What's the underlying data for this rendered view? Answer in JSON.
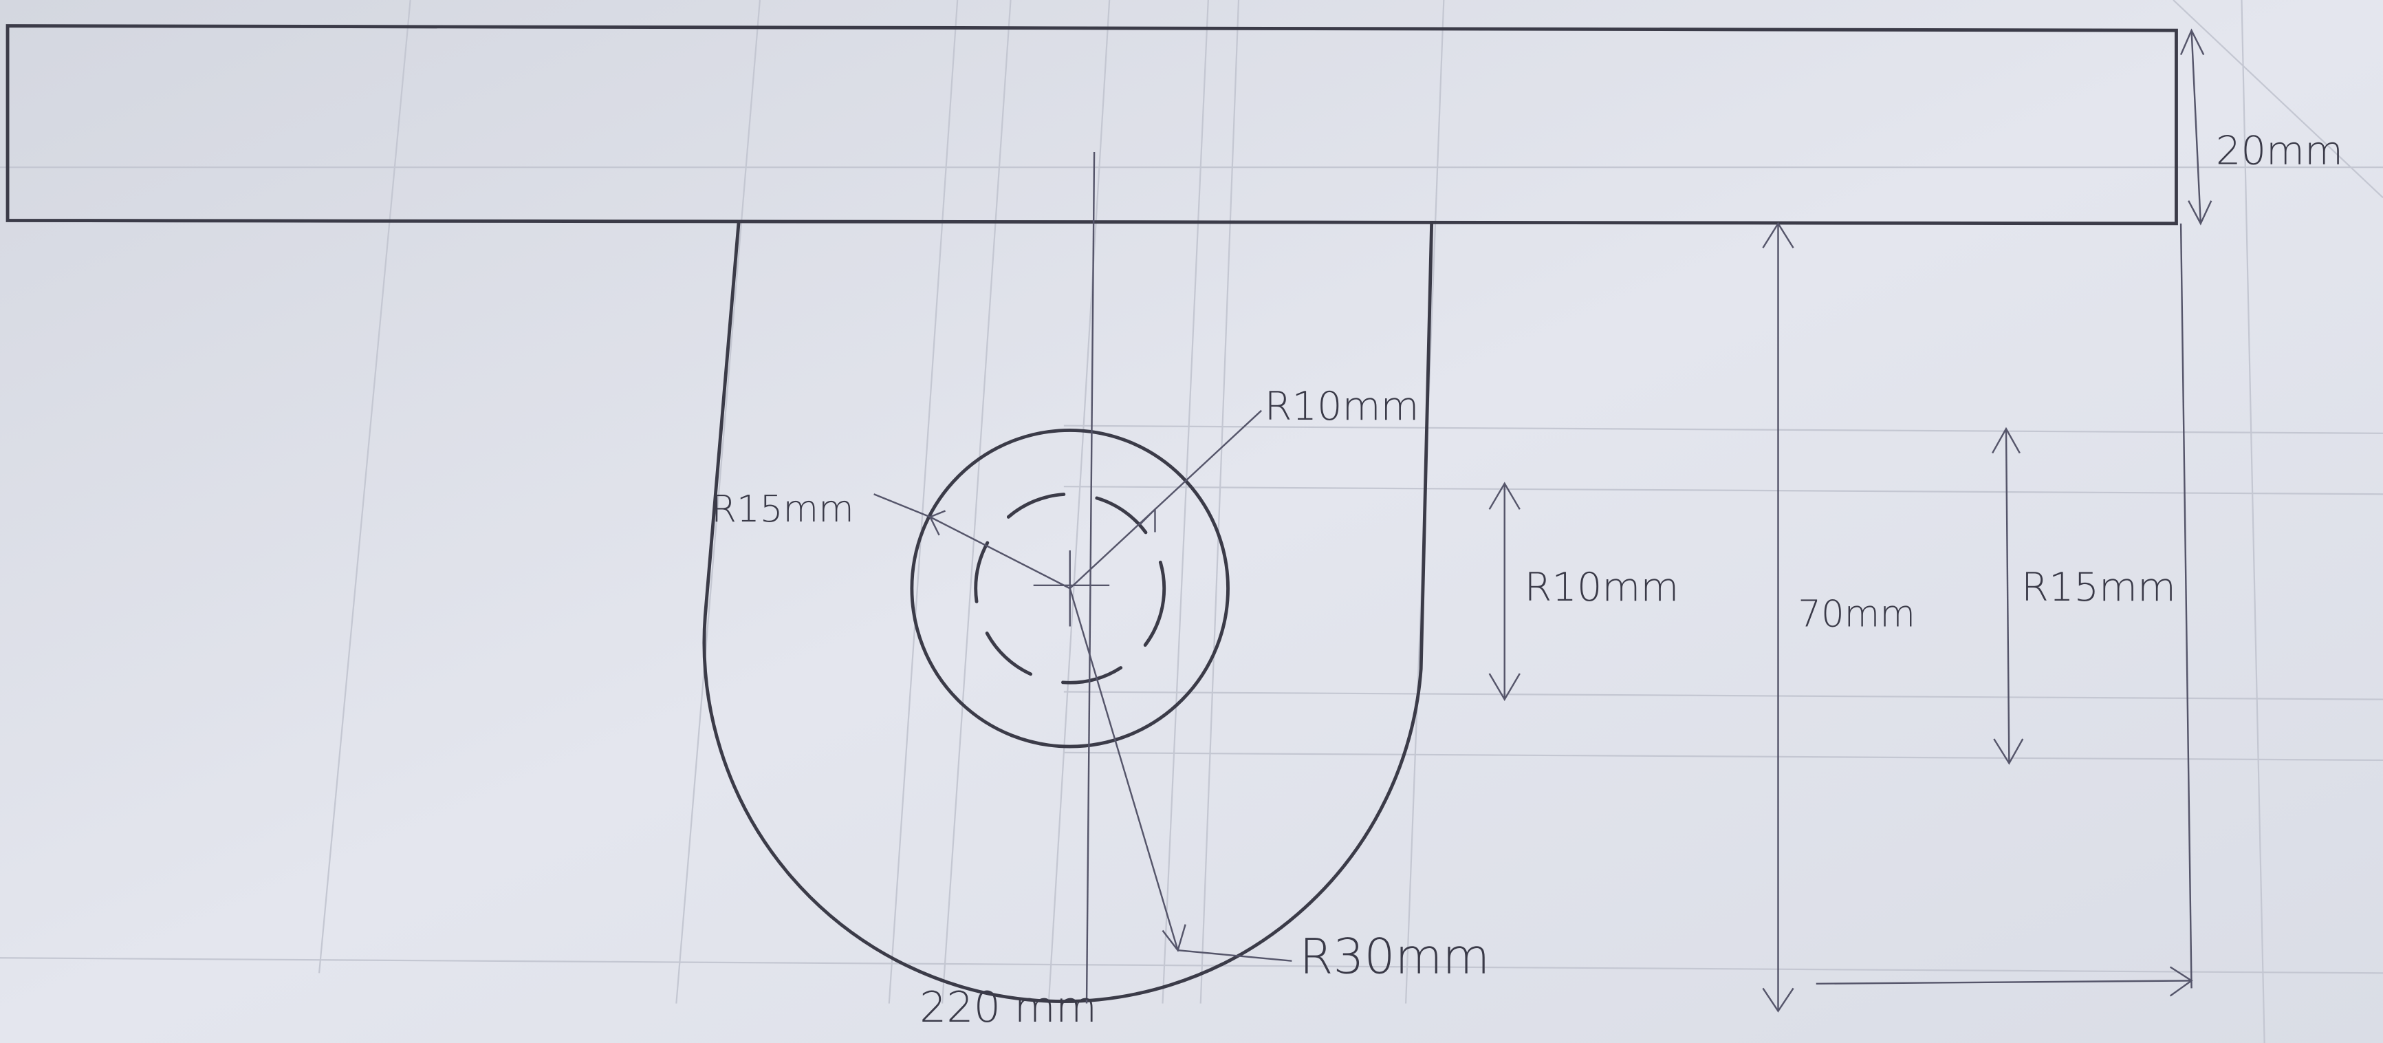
{
  "labels": {
    "top_height": "20mm",
    "inner_radius": "R10mm",
    "boss_radius": "R15mm",
    "inner_dim": "R10mm",
    "height": "70mm",
    "boss_dim": "R15mm",
    "outer_radius": "R30mm",
    "width": "220 mm"
  }
}
